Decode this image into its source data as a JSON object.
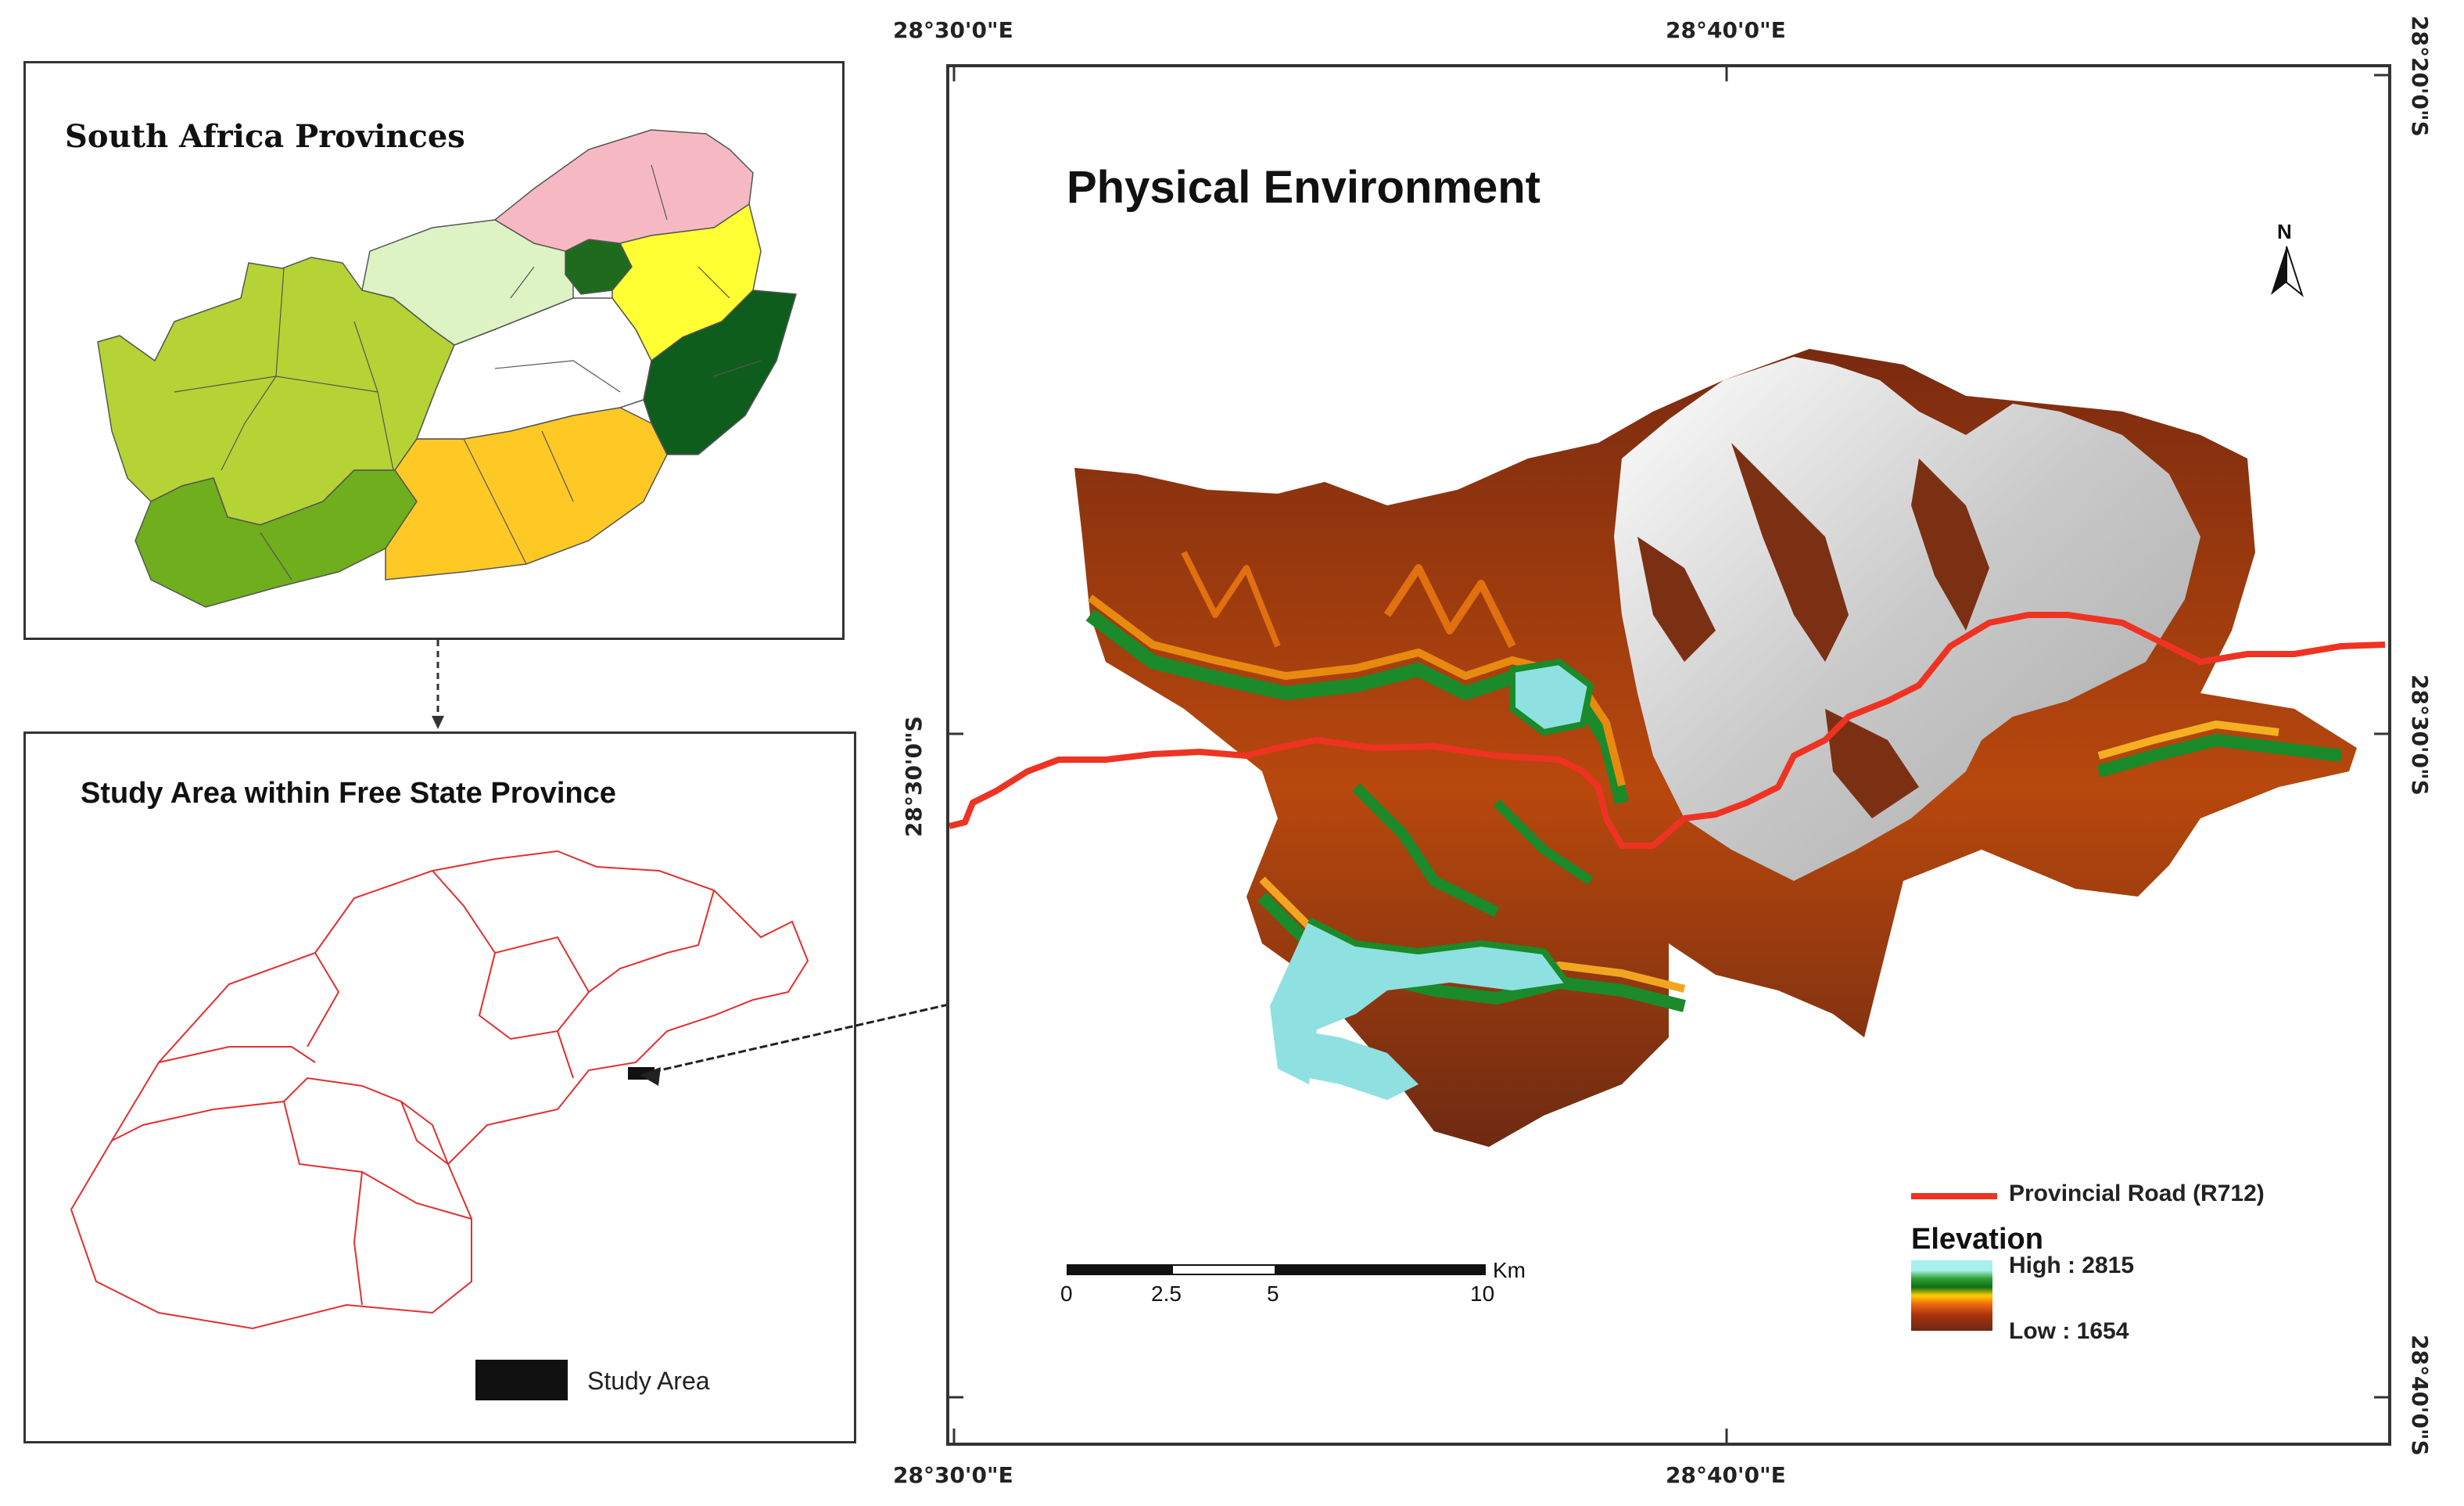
{
  "inset_provinces": {
    "title": "South Africa Provinces",
    "colors": {
      "limpopo": "#f6b9c3",
      "gauteng": "#1e6b1e",
      "mpumalanga": "#ffff33",
      "northwest": "#ddf3c4",
      "freestate": "#ffffff",
      "kwazulu_natal": "#0f5d1c",
      "northern_cape": "#b5d334",
      "western_cape": "#6fae1c",
      "eastern_cape": "#ffc925"
    }
  },
  "inset_study_area": {
    "title": "Study Area within Free State Province",
    "legend_label": "Study Area",
    "outline_color": "#e03030"
  },
  "main_map": {
    "title": "Physical Environment",
    "north_label": "N",
    "coords": {
      "top_left": "28°30'0\"E",
      "top_mid": "28°40'0\"E",
      "bottom_left": "28°30'0\"E",
      "bottom_mid": "28°40'0\"E",
      "right_top": "28°20'0\"S",
      "right_mid": "28°30'0\"S",
      "right_bottom": "28°40'0\"S",
      "left_mid": "28°30'0\"S"
    },
    "scale": {
      "unit": "Km",
      "labels": [
        "0",
        "2.5",
        "5",
        "10"
      ]
    },
    "legend": {
      "road_label": "Provincial Road (R712)",
      "road_color": "#ee3322",
      "elevation_title": "Elevation",
      "high_label": "High : 2815",
      "low_label": "Low : 1654"
    }
  }
}
